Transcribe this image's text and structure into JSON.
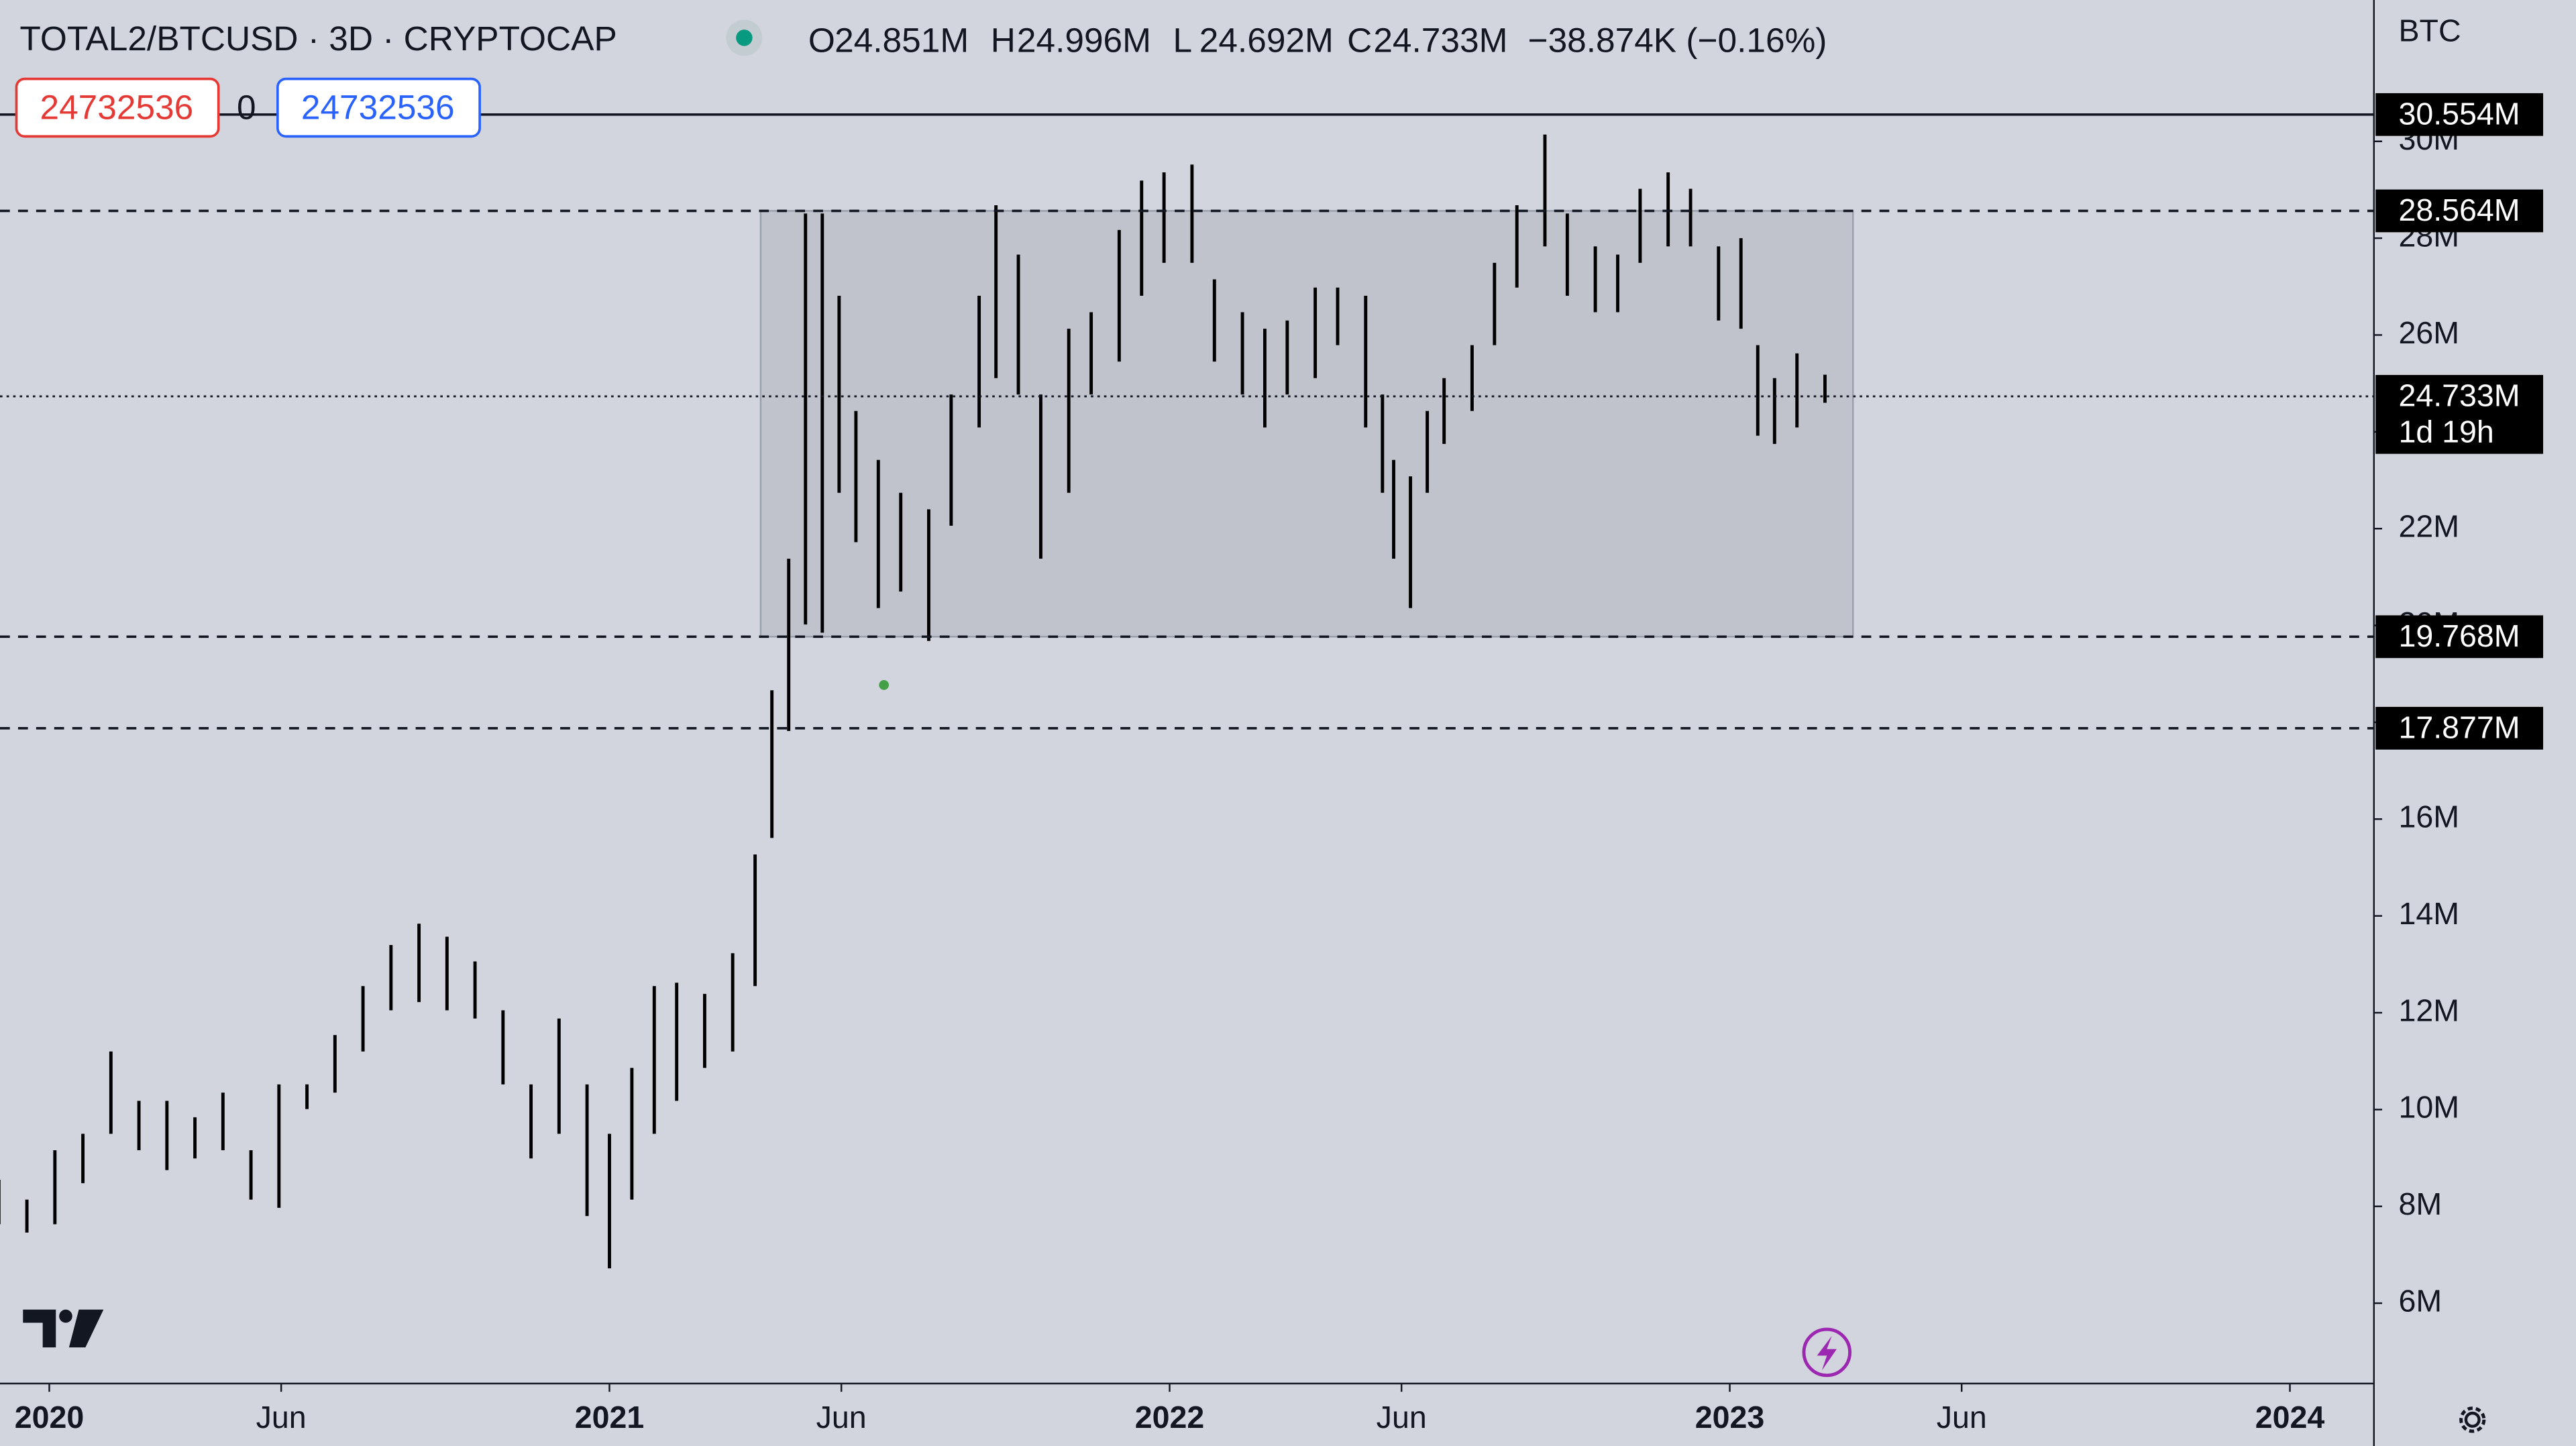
{
  "header": {
    "symbol": "TOTAL2/BTCUSD · 3D · CRYPTOCAP",
    "ohlc": [
      {
        "label": "O",
        "value": "24.851M"
      },
      {
        "label": "H",
        "value": "24.996M"
      },
      {
        "label": "L",
        "value": "24.692M"
      },
      {
        "label": "C",
        "value": "24.733M"
      }
    ],
    "change": "−38.874K (−0.16%)",
    "sell": "24732536",
    "spread": "0",
    "buy": "24732536"
  },
  "chart_data": {
    "type": "ohlc",
    "currency": "BTC",
    "color": "#000000",
    "x": [
      2019.91,
      2019.96,
      2020.01,
      2020.06,
      2020.11,
      2020.16,
      2020.21,
      2020.26,
      2020.31,
      2020.36,
      2020.41,
      2020.46,
      2020.51,
      2020.56,
      2020.61,
      2020.66,
      2020.71,
      2020.76,
      2020.81,
      2020.86,
      2020.91,
      2020.96,
      2021.0,
      2021.04,
      2021.08,
      2021.12,
      2021.17,
      2021.22,
      2021.26,
      2021.29,
      2021.32,
      2021.35,
      2021.38,
      2021.41,
      2021.44,
      2021.48,
      2021.52,
      2021.57,
      2021.61,
      2021.66,
      2021.69,
      2021.73,
      2021.77,
      2021.82,
      2021.86,
      2021.91,
      2021.95,
      2021.99,
      2022.04,
      2022.08,
      2022.13,
      2022.17,
      2022.21,
      2022.26,
      2022.3,
      2022.35,
      2022.38,
      2022.4,
      2022.43,
      2022.46,
      2022.49,
      2022.54,
      2022.58,
      2022.62,
      2022.67,
      2022.71,
      2022.76,
      2022.8,
      2022.84,
      2022.89,
      2022.93,
      2022.98,
      2023.02,
      2023.05,
      2023.08,
      2023.12,
      2023.17
    ],
    "high": [
      8.55,
      8.14,
      9.16,
      9.5,
      11.2,
      10.18,
      10.18,
      9.84,
      10.35,
      9.16,
      10.52,
      10.52,
      11.54,
      12.55,
      13.4,
      13.84,
      13.57,
      13.06,
      12.05,
      10.52,
      11.88,
      10.52,
      9.5,
      10.86,
      12.55,
      12.62,
      12.39,
      13.23,
      15.27,
      18.66,
      21.38,
      28.51,
      28.51,
      26.81,
      24.43,
      23.42,
      22.74,
      22.4,
      24.77,
      26.81,
      28.68,
      27.66,
      24.77,
      26.13,
      26.47,
      28.17,
      29.19,
      29.36,
      29.52,
      27.15,
      26.47,
      26.13,
      26.3,
      26.98,
      26.98,
      26.81,
      24.77,
      23.42,
      23.08,
      24.43,
      25.11,
      25.79,
      27.49,
      28.68,
      30.14,
      28.51,
      27.83,
      27.66,
      29.02,
      29.36,
      29.02,
      27.83,
      28.0,
      25.79,
      25.11,
      25.62,
      25.18
    ],
    "low": [
      7.63,
      7.46,
      7.63,
      8.48,
      9.5,
      9.16,
      8.75,
      8.99,
      9.16,
      8.14,
      7.97,
      10.01,
      10.35,
      11.2,
      12.05,
      12.22,
      12.05,
      11.88,
      10.52,
      8.99,
      9.5,
      7.8,
      6.72,
      8.14,
      9.5,
      10.18,
      10.86,
      11.2,
      12.55,
      15.61,
      17.82,
      20.02,
      19.85,
      22.74,
      21.72,
      20.36,
      20.7,
      19.68,
      22.06,
      24.09,
      25.11,
      24.77,
      21.38,
      22.74,
      24.77,
      25.45,
      26.81,
      27.49,
      27.49,
      25.45,
      24.77,
      24.09,
      24.77,
      25.11,
      25.79,
      24.09,
      22.74,
      21.38,
      20.36,
      22.74,
      23.75,
      24.43,
      25.79,
      26.98,
      27.83,
      26.81,
      26.47,
      26.47,
      27.49,
      27.83,
      27.83,
      26.3,
      26.13,
      23.92,
      23.75,
      24.09,
      24.6
    ],
    "xlim": [
      2019.912,
      2024.15
    ],
    "ylim": [
      4.34,
      32.92
    ],
    "xticks": [
      2020,
      {
        "value": 2020.414,
        "label": "Jun"
      },
      2021,
      {
        "value": 2021.414,
        "label": "Jun"
      },
      2022,
      {
        "value": 2022.414,
        "label": "Jun"
      },
      2023,
      {
        "value": 2023.414,
        "label": "Jun"
      },
      2024
    ],
    "yticks": [
      {
        "value": 6,
        "label": "6M"
      },
      {
        "value": 8,
        "label": "8M"
      },
      {
        "value": 10,
        "label": "10M"
      },
      {
        "value": 12,
        "label": "12M"
      },
      {
        "value": 14,
        "label": "14M"
      },
      {
        "value": 16,
        "label": "16M"
      },
      {
        "value": 18,
        "label": "18M"
      },
      {
        "value": 20,
        "label": "20M"
      },
      {
        "value": 22,
        "label": "22M"
      },
      {
        "value": 24,
        "label": "24M"
      },
      {
        "value": 26,
        "label": "26M"
      },
      {
        "value": 28,
        "label": "28M"
      },
      {
        "value": 30,
        "label": "30M"
      }
    ],
    "price_lines": [
      {
        "value": 30.554,
        "label": "30.554M",
        "style": "solid"
      },
      {
        "value": 28.564,
        "label": "28.564M",
        "style": "dashed"
      },
      {
        "value": 24.733,
        "label": "24.733M",
        "style": "dotted"
      },
      {
        "value": 19.768,
        "label": "19.768M",
        "style": "dashed"
      },
      {
        "value": 17.877,
        "label": "17.877M",
        "style": "dashed"
      }
    ],
    "countdown": "1d 19h",
    "range_box": {
      "x": [
        2021.27,
        2023.22
      ],
      "y": [
        19.768,
        28.564
      ]
    },
    "marker": {
      "x": 2021.49,
      "y": 18.77,
      "color": "#43a047"
    }
  }
}
